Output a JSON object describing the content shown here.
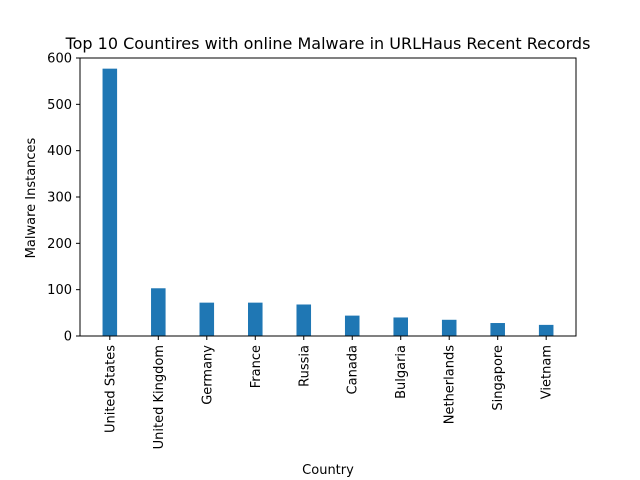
{
  "chart_data": {
    "type": "bar",
    "title": "Top 10 Countires with online Malware in URLHaus Recent Records",
    "xlabel": "Country",
    "ylabel": "Malware Instances",
    "categories": [
      "United States",
      "United Kingdom",
      "Germany",
      "France",
      "Russia",
      "Canada",
      "Bulgaria",
      "Netherlands",
      "Singapore",
      "Vietnam"
    ],
    "values": [
      577,
      103,
      72,
      72,
      68,
      44,
      40,
      35,
      28,
      24
    ],
    "ylim": [
      0,
      600
    ],
    "yticks": [
      0,
      100,
      200,
      300,
      400,
      500,
      600
    ],
    "bar_color": "#1f77b4",
    "grid": false,
    "legend": false
  }
}
